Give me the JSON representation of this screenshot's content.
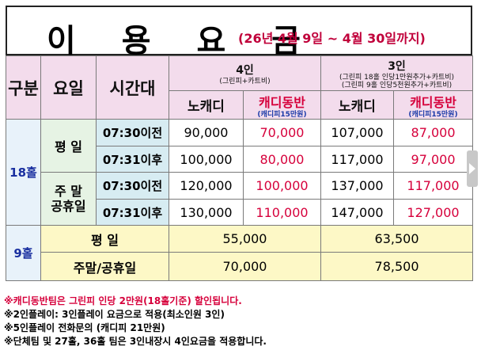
{
  "title": {
    "main": "이 용 요 금",
    "period": "(26년 4월 9일 ~ 4월 30일까지)"
  },
  "header": {
    "category": "구분",
    "day": "요일",
    "time": "시간대",
    "four": {
      "label": "4인",
      "note": "(그린피+카트비)",
      "no_caddy": "노캐디",
      "caddy": "캐디동반",
      "caddy_note": "(캐디피15만원)"
    },
    "three": {
      "label": "3인",
      "note1": "(그린피 18홀 인당1만원추가+카트비)",
      "note2": "(그린피 9홀 인당5천원추가+카트비)",
      "no_caddy": "노캐디",
      "caddy": "캐디동반",
      "caddy_note": "(캐디피15만원)"
    }
  },
  "holes18": {
    "label": "18홀",
    "weekday": {
      "label": "평 일",
      "rows": [
        {
          "time": "07:30이전",
          "four_no": "90,000",
          "four_caddy": "70,000",
          "three_no": "107,000",
          "three_caddy": "87,000"
        },
        {
          "time": "07:31이후",
          "four_no": "100,000",
          "four_caddy": "80,000",
          "three_no": "117,000",
          "three_caddy": "97,000"
        }
      ]
    },
    "weekend": {
      "label1": "주 말",
      "label2": "공휴일",
      "rows": [
        {
          "time": "07:30이전",
          "four_no": "120,000",
          "four_caddy": "100,000",
          "three_no": "137,000",
          "three_caddy": "117,000"
        },
        {
          "time": "07:31이후",
          "four_no": "130,000",
          "four_caddy": "110,000",
          "three_no": "147,000",
          "three_caddy": "127,000"
        }
      ]
    }
  },
  "holes9": {
    "label": "9홀",
    "rows": [
      {
        "label": "평 일",
        "four": "55,000",
        "three": "63,500"
      },
      {
        "label": "주말/공휴일",
        "four": "70,000",
        "three": "78,500"
      }
    ]
  },
  "notes": [
    "※캐디동반팀은 그린피 인당 2만원(18홀기준) 할인됩니다.",
    "※2인플레이: 3인플레이 요금으로 적용(최소인원 3인)",
    "※5인플레이 전화문의 (캐디피 21만원)",
    "※단체팀 및 27홀, 36홀 팀은 3인내장시 4인요금을 적용합니다."
  ],
  "colors": {
    "accent_red": "#d6003b",
    "header_pink": "#f3dcec",
    "nine_yellow": "#fdf8c6",
    "label_blue": "#1a30a0"
  },
  "icons": {
    "scroll": "chevron-right-icon"
  }
}
